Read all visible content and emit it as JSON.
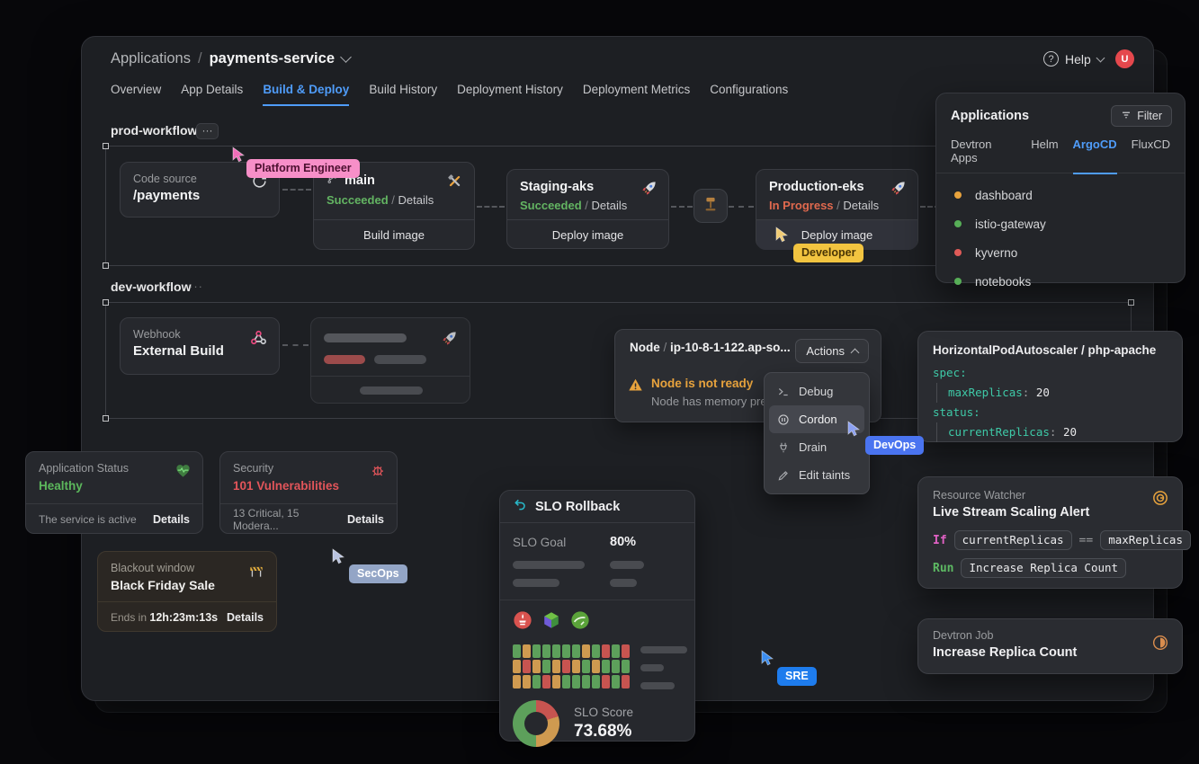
{
  "icons": {
    "ellipsis": "···"
  },
  "header": {
    "breadcrumb_root": "Applications",
    "breadcrumb_sep": "/",
    "app_name": "payments-service",
    "help_label": "Help",
    "avatar_initial": "U"
  },
  "main_tabs": [
    "Overview",
    "App Details",
    "Build & Deploy",
    "Build History",
    "Deployment History",
    "Deployment Metrics",
    "Configurations"
  ],
  "prod_workflow": {
    "label": "prod-workflow"
  },
  "dev_workflow": {
    "label": "dev-workflow"
  },
  "cards": {
    "code_source": {
      "title": "Code source",
      "subtitle": "/payments"
    },
    "build": {
      "branch": "main",
      "status": "Succeeded",
      "sep": "/",
      "details_label": "Details",
      "action": "Build image"
    },
    "staging": {
      "name": "Staging-aks",
      "status": "Succeeded",
      "sep": "/",
      "details_label": "Details",
      "action": "Deploy image"
    },
    "production": {
      "name": "Production-eks",
      "status": "In Progress",
      "sep": "/",
      "details_label": "Details",
      "action": "Deploy image"
    },
    "webhook": {
      "title": "Webhook",
      "subtitle": "External Build"
    }
  },
  "node_card": {
    "kind": "Node",
    "sep": "/",
    "name": "ip-10-8-1-122.ap-so...",
    "actions_label": "Actions",
    "warning_title": "Node is not ready",
    "warning_desc": "Node has memory pre..."
  },
  "node_menu": {
    "items": [
      {
        "label": "Debug",
        "icon": "terminal-icon"
      },
      {
        "label": "Cordon",
        "icon": "cordon-icon"
      },
      {
        "label": "Drain",
        "icon": "drain-icon"
      },
      {
        "label": "Edit taints",
        "icon": "edit-taints-icon"
      }
    ]
  },
  "apps_panel": {
    "title": "Applications",
    "filter_label": "Filter",
    "tabs": [
      {
        "label": "Devtron Apps"
      },
      {
        "label": "Helm"
      },
      {
        "label": "ArgoCD",
        "active": true
      },
      {
        "label": "FluxCD"
      }
    ],
    "items": [
      {
        "name": "dashboard",
        "status_color": "#e8a33d"
      },
      {
        "name": "istio-gateway",
        "status_color": "#57ae57"
      },
      {
        "name": "kyverno",
        "status_color": "#e05b58"
      },
      {
        "name": "notebooks",
        "status_color": "#57ae57"
      }
    ]
  },
  "hpa_panel": {
    "title": "HorizontalPodAutoscaler / php-apache",
    "spec_key": "spec:",
    "max_key": "maxReplicas",
    "max_val": "20",
    "status_key": "status:",
    "cur_key": "currentReplicas",
    "cur_val": "20"
  },
  "status_cards": {
    "app_status": {
      "title": "Application Status",
      "value": "Healthy",
      "value_color": "#5cb85c",
      "footer": "The service is active",
      "details_label": "Details"
    },
    "security": {
      "title": "Security",
      "value": "101 Vulnerabilities",
      "value_color": "#e2555a",
      "footer": "13 Critical, 15 Modera...",
      "details_label": "Details"
    }
  },
  "blackout": {
    "title": "Blackout window",
    "name": "Black Friday Sale",
    "ends_label": "Ends in",
    "countdown": "12h:23m:13s",
    "details_label": "Details"
  },
  "slo_panel": {
    "title": "SLO Rollback",
    "goal_label": "SLO Goal",
    "goal_value": "80%",
    "score_label": "SLO Score",
    "score_value": "73.68%",
    "integrations": [
      "prometheus-icon",
      "newrelic-icon",
      "dynatrace-icon"
    ],
    "grid": {
      "colors": {
        "g": "#5da05b",
        "o": "#cf9a50",
        "r": "#c75450"
      },
      "rows": [
        [
          "g",
          "o",
          "g",
          "g",
          "g",
          "g",
          "g",
          "o",
          "g",
          "r",
          "g",
          "r"
        ],
        [
          "o",
          "r",
          "o",
          "g",
          "o",
          "r",
          "o",
          "g",
          "o",
          "g",
          "g",
          "g"
        ],
        [
          "o",
          "o",
          "g",
          "r",
          "o",
          "g",
          "g",
          "g",
          "g",
          "r",
          "g",
          "r"
        ]
      ]
    },
    "donut": {
      "segments": [
        {
          "color": "#c75450",
          "pct": 20
        },
        {
          "color": "#cf9a50",
          "pct": 30
        },
        {
          "color": "#5da05b",
          "pct": 50
        }
      ]
    }
  },
  "resource_watcher": {
    "title": "Resource Watcher",
    "name": "Live Stream Scaling Alert",
    "if_keyword": "If",
    "condition_left": "currentReplicas",
    "operator": "==",
    "condition_right": "maxReplicas",
    "run_keyword": "Run",
    "action": "Increase Replica Count"
  },
  "devtron_job": {
    "title": "Devtron Job",
    "name": "Increase Replica Count"
  },
  "cursors": [
    {
      "label": "Platform Engineer",
      "pill_bg": "#f78fc8",
      "pill_text": "#4d1030",
      "cursor": "#ef6eb8"
    },
    {
      "label": "Developer",
      "pill_bg": "#f2c440",
      "pill_text": "#4a3505",
      "cursor": "#f0cb74"
    },
    {
      "label": "DevOps",
      "pill_bg": "#4a74f0",
      "pill_text": "#ffffff",
      "cursor": "#8ba0f2"
    },
    {
      "label": "SecOps",
      "pill_bg": "#93a5c6",
      "pill_text": "#ffffff",
      "cursor": "#b9c3e0"
    },
    {
      "label": "SRE",
      "pill_bg": "#1e7ced",
      "pill_text": "#ffffff",
      "cursor": "#3b8df0"
    }
  ],
  "colors": {
    "accent_blue": "#4f9cf9",
    "yaml_teal": "#3ec9a7",
    "warning_orange": "#e8a33d"
  }
}
